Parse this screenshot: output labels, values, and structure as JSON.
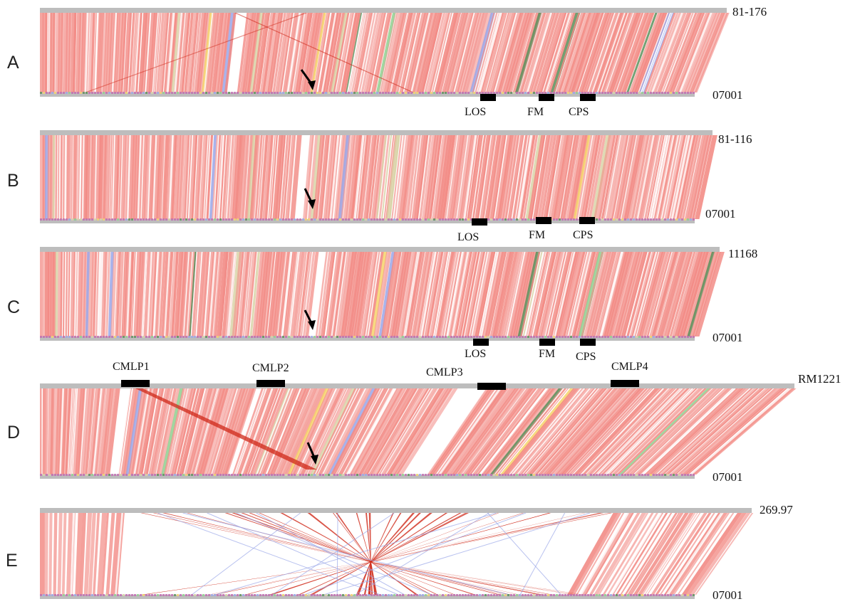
{
  "figure": {
    "panels": [
      {
        "letter": "A",
        "top_genome": "81-176",
        "bottom_genome": "07001",
        "regions": [
          "LOS",
          "FM",
          "CPS"
        ]
      },
      {
        "letter": "B",
        "top_genome": "81-116",
        "bottom_genome": "07001",
        "regions": [
          "LOS",
          "FM",
          "CPS"
        ]
      },
      {
        "letter": "C",
        "top_genome": "11168",
        "bottom_genome": "07001",
        "regions": [
          "LOS",
          "FM",
          "CPS"
        ]
      },
      {
        "letter": "D",
        "top_genome": "RM1221",
        "bottom_genome": "07001",
        "regions": [
          "CMLP1",
          "CMLP2",
          "CMLP3",
          "CMLP4"
        ]
      },
      {
        "letter": "E",
        "top_genome": "269.97",
        "bottom_genome": "07001",
        "regions": []
      }
    ],
    "colors": {
      "forward_match": "#f28a84",
      "inverted_match": "#cf2a1a",
      "minor_match_colors": [
        "#f6d36b",
        "#8fcf8f",
        "#9aa6e8",
        "#d9d3a8",
        "#5a8f5a"
      ],
      "genome_bar": "#bdbdbd",
      "region_marker": "#000000",
      "arrow": "#000000"
    }
  }
}
